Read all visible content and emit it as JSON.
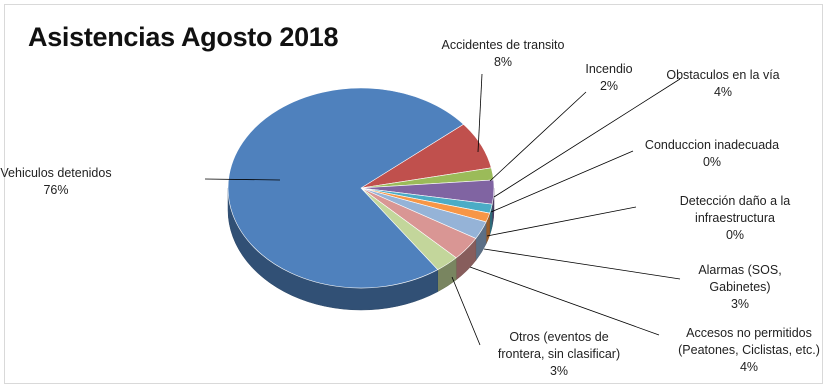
{
  "chart_data": {
    "type": "pie",
    "title": "Asistencias Agosto 2018",
    "slices": [
      {
        "name": "Vehiculos detenidos",
        "value": 76,
        "value_label": "76%",
        "color": "#4f81bd"
      },
      {
        "name": "Accidentes de transito",
        "value": 8,
        "value_label": "8%",
        "color": "#c0504d"
      },
      {
        "name": "Incendio",
        "value": 2,
        "value_label": "2%",
        "color": "#9bbb59"
      },
      {
        "name": "Obstaculos en la vía",
        "value": 4,
        "value_label": "4%",
        "color": "#8064a2"
      },
      {
        "name": "Conduccion inadecuada",
        "value": 0,
        "value_label": "0%",
        "color": "#4bacc6"
      },
      {
        "name": "Detección daño a la infraestructura",
        "value": 0,
        "value_label": "0%",
        "color": "#f79646"
      },
      {
        "name": "Alarmas (SOS, Gabinetes)",
        "value": 3,
        "value_label": "3%",
        "color": "#95b3d7"
      },
      {
        "name": "Accesos no permitidos (Peatones, Ciclistas, etc.)",
        "value": 4,
        "value_label": "4%",
        "color": "#d99694"
      },
      {
        "name": "Otros (eventos de frontera, sin clasificar)",
        "value": 3,
        "value_label": "3%",
        "color": "#c3d69b"
      }
    ]
  },
  "labels": [
    {
      "lines": [
        "Vehiculos detenidos",
        "76%"
      ]
    },
    {
      "lines": [
        "Accidentes de transito",
        "8%"
      ]
    },
    {
      "lines": [
        "Incendio",
        "2%"
      ]
    },
    {
      "lines": [
        "Obstaculos en la vía",
        "4%"
      ]
    },
    {
      "lines": [
        "Conduccion inadecuada",
        "0%"
      ]
    },
    {
      "lines": [
        "Detección daño a la",
        "infraestructura",
        "0%"
      ]
    },
    {
      "lines": [
        "Alarmas (SOS,",
        "Gabinetes)",
        "3%"
      ]
    },
    {
      "lines": [
        "Accesos no permitidos",
        "(Peatones, Ciclistas, etc.)",
        "4%"
      ]
    },
    {
      "lines": [
        "Otros (eventos de",
        "frontera, sin clasificar)",
        "3%"
      ]
    }
  ]
}
